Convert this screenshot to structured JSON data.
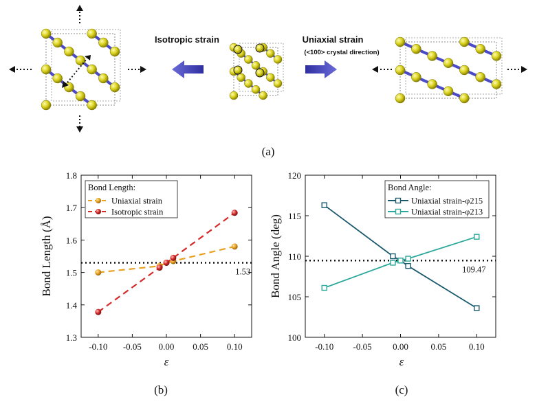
{
  "top_panel": {
    "isotropic_label": "Isotropic strain",
    "uniaxial_label": "Uniaxial strain",
    "uniaxial_sublabel": "(<100> crystal direction)",
    "panel_label": "(a)",
    "colors": {
      "atom": "#d9d21e",
      "bond": "#4b4bc8",
      "arrow": "#2f2fa0"
    }
  },
  "chart_data": [
    {
      "type": "line",
      "panel_label": "(b)",
      "xlabel": "ε",
      "ylabel": "Bond Length (Å)",
      "xlim": [
        -0.125,
        0.125
      ],
      "ylim": [
        1.3,
        1.8
      ],
      "xticks": [
        -0.1,
        -0.05,
        0.0,
        0.05,
        0.1
      ],
      "xtick_labels": [
        "-0.10",
        "-0.05",
        "0.00",
        "0.05",
        "0.10"
      ],
      "yticks": [
        1.3,
        1.4,
        1.5,
        1.6,
        1.7,
        1.8
      ],
      "ytick_labels": [
        "1.3",
        "1.4",
        "1.5",
        "1.6",
        "1.7",
        "1.8"
      ],
      "legend_title": "Bond Length:",
      "legend_position": "top-left",
      "series": [
        {
          "name": "Uniaxial strain",
          "color": "#e8a020",
          "marker": "sphere",
          "x": [
            -0.1,
            -0.01,
            0.0,
            0.01,
            0.1
          ],
          "y": [
            1.5,
            1.52,
            1.53,
            1.535,
            1.58
          ]
        },
        {
          "name": "Isotropic strain",
          "color": "#d42a2a",
          "marker": "sphere",
          "x": [
            -0.1,
            -0.01,
            0.0,
            0.01,
            0.1
          ],
          "y": [
            1.378,
            1.515,
            1.53,
            1.545,
            1.684
          ]
        }
      ],
      "reference": {
        "y": 1.53,
        "label": "1.53"
      }
    },
    {
      "type": "line",
      "panel_label": "(c)",
      "xlabel": "ε",
      "ylabel": "Bond Angle (deg)",
      "xlim": [
        -0.125,
        0.125
      ],
      "ylim": [
        100,
        120
      ],
      "xticks": [
        -0.1,
        -0.05,
        0.0,
        0.05,
        0.1
      ],
      "xtick_labels": [
        "-0.10",
        "-0.05",
        "0.00",
        "0.05",
        "0.10"
      ],
      "yticks": [
        100,
        105,
        110,
        115,
        120
      ],
      "ytick_labels": [
        "100",
        "105",
        "110",
        "115",
        "120"
      ],
      "legend_title": "Bond Angle:",
      "legend_position": "top-right",
      "series": [
        {
          "name": "Uniaxial strain-φ215",
          "color": "#1a5a6e",
          "marker": "square",
          "x": [
            -0.1,
            -0.01,
            0.0,
            0.01,
            0.1
          ],
          "y": [
            116.3,
            110.0,
            109.47,
            108.8,
            103.6
          ]
        },
        {
          "name": "Uniaxial strain-φ213",
          "color": "#2aa89a",
          "marker": "square",
          "x": [
            -0.1,
            -0.01,
            0.0,
            0.01,
            0.1
          ],
          "y": [
            106.1,
            109.2,
            109.47,
            109.7,
            112.4
          ]
        }
      ],
      "reference": {
        "y": 109.47,
        "label": "109.47"
      }
    }
  ]
}
